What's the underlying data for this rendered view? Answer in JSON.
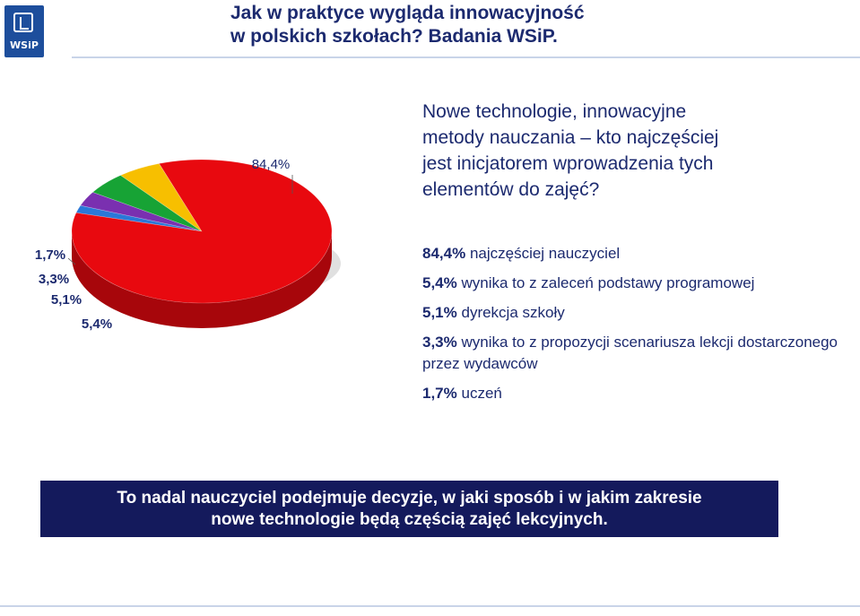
{
  "header": {
    "logo_text": "WSiP",
    "title_line1": "Jak w praktyce wygląda innowacyjność",
    "title_line2": "w polskich szkołach? Badania WSiP."
  },
  "question": {
    "line1": "Nowe technologie, innowacyjne",
    "line2": "metody nauczania – kto najczęściej",
    "line3": "jest inicjatorem wprowadzenia tych",
    "line4": "elementów do zajęć?"
  },
  "legend": [
    {
      "pct": "84,4%",
      "text": "najczęściej nauczyciel"
    },
    {
      "pct": "5,4%",
      "text": "wynika to z zaleceń podstawy programowej"
    },
    {
      "pct": "5,1%",
      "text": "dyrekcja szkoły"
    },
    {
      "pct": "3,3%",
      "text": "wynika to z propozycji scenariusza lekcji dostarczonego przez wydawców"
    },
    {
      "pct": "1,7%",
      "text": "uczeń"
    }
  ],
  "chart_data": {
    "type": "pie",
    "title": "Nowe technologie, innowacyjne metody nauczania – kto najczęściej jest inicjatorem wprowadzenia tych elementów do zajęć?",
    "categories": [
      "najczęściej nauczyciel",
      "wynika to z zaleceń podstawy programowej",
      "dyrekcja szkoły",
      "wynika to z propozycji scenariusza lekcji dostarczonego przez wydawców",
      "uczeń"
    ],
    "values": [
      84.4,
      5.4,
      5.1,
      3.3,
      1.7
    ],
    "labels": [
      "84,4%",
      "5,4%",
      "5,1%",
      "3,3%",
      "1,7%"
    ],
    "colors": [
      "#e8090f",
      "#f7bf00",
      "#17a335",
      "#7a30b0",
      "#2a78d8"
    ],
    "legend_position": "right"
  },
  "banner": {
    "line1": "To nadal nauczyciel podejmuje decyzje, w jaki sposób i w jakim zakresie",
    "line2": "nowe technologie będą częścią zajęć lekcyjnych."
  }
}
